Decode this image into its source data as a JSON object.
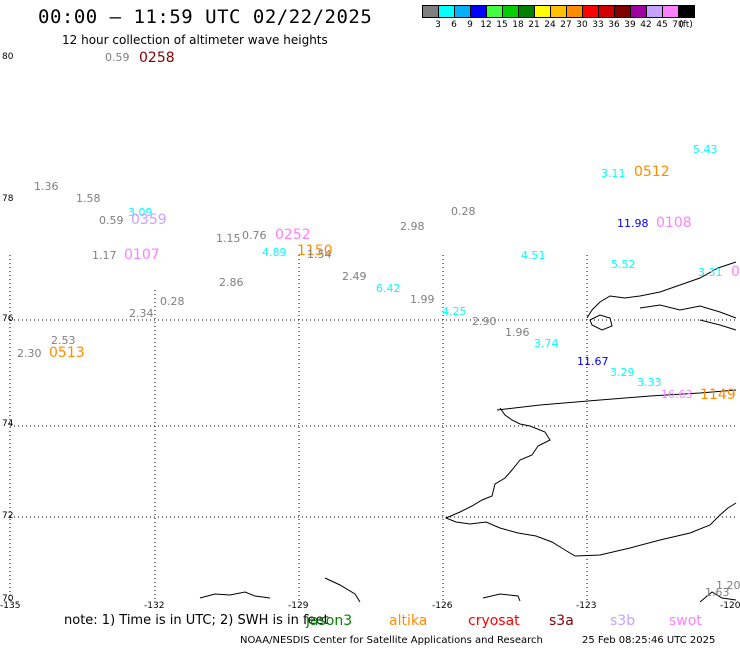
{
  "title": "00:00 – 11:59 UTC 02/22/2025",
  "subtitle": "12 hour collection of altimeter wave heights",
  "legend": {
    "colors": [
      "#7f7f7f",
      "#00ffff",
      "#00b0ff",
      "#0000ff",
      "#40ff40",
      "#00d000",
      "#008000",
      "#ffff00",
      "#ffc000",
      "#ff8c00",
      "#ff0000",
      "#d00000",
      "#800000",
      "#a000a0",
      "#c8a0ff",
      "#ff80ff",
      "#000000"
    ],
    "ticks": [
      "3",
      "6",
      "9",
      "12",
      "15",
      "18",
      "21",
      "24",
      "27",
      "30",
      "33",
      "36",
      "39",
      "42",
      "45",
      "70",
      "(ft)"
    ]
  },
  "axes": {
    "lat": [
      "80",
      "78",
      "76",
      "74",
      "72",
      "70"
    ],
    "lon": [
      "-135",
      "-132",
      "-129",
      "-126",
      "-123",
      "-120"
    ]
  },
  "labels": [
    {
      "t": "0.59",
      "c": "#7f7f7f"
    },
    {
      "t": "0258",
      "c": "#800000"
    },
    {
      "t": "1.36",
      "c": "#7f7f7f"
    },
    {
      "t": "1.58",
      "c": "#7f7f7f"
    },
    {
      "t": "0.59",
      "c": "#7f7f7f"
    },
    {
      "t": "3.09",
      "c": "#00ffff"
    },
    {
      "t": "0359",
      "c": "#c8a0ff"
    },
    {
      "t": "1.15",
      "c": "#7f7f7f"
    },
    {
      "t": "0.76",
      "c": "#7f7f7f"
    },
    {
      "t": "0252",
      "c": "#ff80ff"
    },
    {
      "t": "4.89",
      "c": "#00ffff"
    },
    {
      "t": "1150",
      "c": "#ff8c00"
    },
    {
      "t": "1.54",
      "c": "#7f7f7f"
    },
    {
      "t": "2.98",
      "c": "#7f7f7f"
    },
    {
      "t": "0.28",
      "c": "#7f7f7f"
    },
    {
      "t": "1.17",
      "c": "#7f7f7f"
    },
    {
      "t": "0107",
      "c": "#ff80ff"
    },
    {
      "t": "2.86",
      "c": "#7f7f7f"
    },
    {
      "t": "2.49",
      "c": "#7f7f7f"
    },
    {
      "t": "6.42",
      "c": "#00ffff"
    },
    {
      "t": "1.99",
      "c": "#7f7f7f"
    },
    {
      "t": "0.28",
      "c": "#7f7f7f"
    },
    {
      "t": "2.34",
      "c": "#7f7f7f"
    },
    {
      "t": "4.25",
      "c": "#00ffff"
    },
    {
      "t": "2.90",
      "c": "#7f7f7f"
    },
    {
      "t": "1.96",
      "c": "#7f7f7f"
    },
    {
      "t": "3.74",
      "c": "#00ffff"
    },
    {
      "t": "2.53",
      "c": "#7f7f7f"
    },
    {
      "t": "2.30",
      "c": "#7f7f7f"
    },
    {
      "t": "0513",
      "c": "#ff8c00"
    },
    {
      "t": "4.51",
      "c": "#00ffff"
    },
    {
      "t": "5.43",
      "c": "#00ffff"
    },
    {
      "t": "3.11",
      "c": "#00ffff"
    },
    {
      "t": "0512",
      "c": "#ff8c00"
    },
    {
      "t": "11.98",
      "c": "#0000ff"
    },
    {
      "t": "0108",
      "c": "#ff80ff"
    },
    {
      "t": "5.52",
      "c": "#00ffff"
    },
    {
      "t": "3.31",
      "c": "#00ffff"
    },
    {
      "t": "0",
      "c": "#ff80ff"
    },
    {
      "t": "11.67",
      "c": "#0000ff"
    },
    {
      "t": "3.29",
      "c": "#00ffff"
    },
    {
      "t": "3.33",
      "c": "#00ffff"
    },
    {
      "t": "16.63",
      "c": "#ff80ff"
    },
    {
      "t": "1149",
      "c": "#ff8c00"
    },
    {
      "t": "1.20",
      "c": "#7f7f7f"
    },
    {
      "t": "1.63",
      "c": "#7f7f7f"
    }
  ],
  "footer": {
    "note": "note:  1) Time is in UTC; 2) SWH is in feet",
    "satellites": [
      {
        "name": "jason3",
        "color": "#008000"
      },
      {
        "name": "altika",
        "color": "#ff8c00"
      },
      {
        "name": "cryosat",
        "color": "#ff0000"
      },
      {
        "name": "s3a",
        "color": "#800000"
      },
      {
        "name": "s3b",
        "color": "#c8a0ff"
      },
      {
        "name": "swot",
        "color": "#ff80ff"
      }
    ],
    "source": "NOAA/NESDIS Center for Satellite Applications and Research",
    "date": "25 Feb 08:25:46 UTC 2025"
  }
}
